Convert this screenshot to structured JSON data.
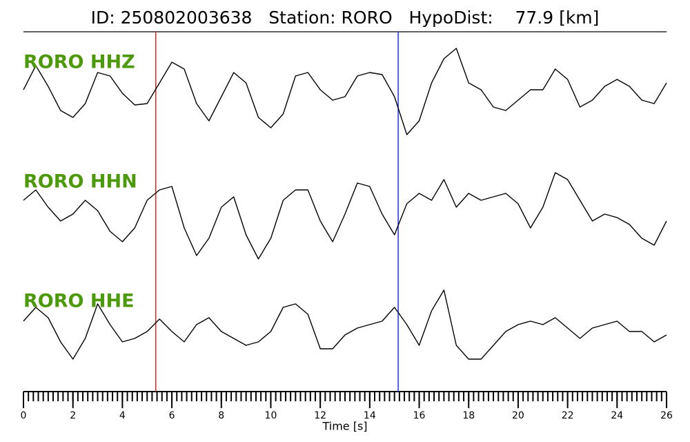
{
  "chart_data": {
    "type": "line",
    "title": "ID: 250802003638   Station: RORO   HypoDist:    77.9 [km]",
    "x_label": "Time [s]",
    "xlim": [
      0,
      26
    ],
    "xticks": [
      0,
      2,
      4,
      6,
      8,
      10,
      12,
      14,
      16,
      18,
      20,
      22,
      24,
      26
    ],
    "xminor": 0.2,
    "ylim": [
      -86.5,
      86.5
    ],
    "label_color": "#4c9a0a",
    "x": [
      0,
      0.5,
      1,
      1.5,
      2,
      2.5,
      3,
      3.5,
      4,
      4.5,
      5,
      5.5,
      6,
      6.5,
      7,
      7.5,
      8,
      8.5,
      9,
      9.5,
      10,
      10.5,
      11,
      11.5,
      12,
      12.5,
      13,
      13.5,
      14,
      14.5,
      15,
      15.5,
      16,
      16.5,
      17,
      17.5,
      18,
      18.5,
      19,
      19.5,
      20,
      20.5,
      21,
      21.5,
      22,
      22.5,
      23,
      23.5,
      24,
      24.5,
      25,
      25.5,
      26
    ],
    "series": [
      {
        "name": "RORO HHZ",
        "color": "#000000",
        "values": [
          2,
          37,
          7,
          -28,
          -38,
          -18,
          27,
          22,
          -3,
          -20,
          -18,
          12,
          42,
          32,
          -18,
          -43,
          -8,
          27,
          12,
          -38,
          -53,
          -33,
          22,
          27,
          2,
          -13,
          -8,
          22,
          27,
          24,
          -8,
          -63,
          -43,
          12,
          47,
          62,
          12,
          2,
          -23,
          -28,
          -13,
          2,
          2,
          32,
          17,
          -23,
          -13,
          7,
          17,
          7,
          -13,
          -18,
          12
        ]
      },
      {
        "name": "RORO HHN",
        "color": "#000000",
        "values": [
          15,
          30,
          5,
          -15,
          -5,
          15,
          0,
          -30,
          -45,
          -25,
          15,
          30,
          35,
          -25,
          -65,
          -40,
          5,
          20,
          -35,
          -70,
          -40,
          15,
          30,
          30,
          -15,
          -45,
          -5,
          40,
          35,
          -5,
          -35,
          10,
          25,
          15,
          45,
          5,
          25,
          15,
          20,
          25,
          10,
          -25,
          5,
          55,
          45,
          15,
          -15,
          -5,
          -10,
          -20,
          -40,
          -50,
          -15
        ]
      },
      {
        "name": "RORO HHE",
        "color": "#000000",
        "values": [
          13,
          33,
          18,
          -17,
          -42,
          -12,
          38,
          8,
          -17,
          -12,
          -2,
          16,
          -2,
          -17,
          8,
          18,
          -2,
          -12,
          -22,
          -17,
          -2,
          33,
          38,
          23,
          -27,
          -27,
          -7,
          3,
          8,
          13,
          33,
          8,
          -22,
          28,
          58,
          -22,
          -42,
          -42,
          -22,
          -2,
          8,
          13,
          8,
          18,
          3,
          -12,
          3,
          8,
          13,
          -2,
          -2,
          -17,
          -7
        ]
      }
    ],
    "vlines": [
      {
        "x": 5.35,
        "color": "#e8211d"
      },
      {
        "x": 15.15,
        "color": "#1f2ee8"
      }
    ]
  }
}
